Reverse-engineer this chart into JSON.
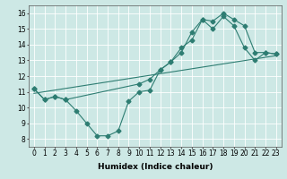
{
  "xlabel": "Humidex (Indice chaleur)",
  "bg_color": "#cde8e5",
  "grid_color": "#ffffff",
  "line_color": "#2e7d72",
  "xlim": [
    -0.5,
    23.5
  ],
  "ylim": [
    7.5,
    16.5
  ],
  "xticks": [
    0,
    1,
    2,
    3,
    4,
    5,
    6,
    7,
    8,
    9,
    10,
    11,
    12,
    13,
    14,
    15,
    16,
    17,
    18,
    19,
    20,
    21,
    22,
    23
  ],
  "yticks": [
    8,
    9,
    10,
    11,
    12,
    13,
    14,
    15,
    16
  ],
  "line1_x": [
    0,
    1,
    2,
    3,
    4,
    5,
    6,
    7,
    8,
    9,
    10,
    11,
    12,
    13,
    14,
    15,
    16,
    17,
    18,
    19,
    20,
    21,
    22,
    23
  ],
  "line1_y": [
    11.2,
    10.5,
    10.7,
    10.5,
    9.8,
    9.0,
    8.2,
    8.2,
    8.5,
    10.4,
    11.0,
    11.1,
    12.4,
    12.9,
    13.8,
    14.3,
    15.6,
    15.0,
    15.8,
    15.2,
    13.8,
    13.0,
    13.5,
    13.4
  ],
  "line2_x": [
    0,
    23
  ],
  "line2_y": [
    10.9,
    13.3
  ],
  "line3_x": [
    0,
    1,
    2,
    3,
    10,
    11,
    12,
    13,
    14,
    15,
    16,
    17,
    18,
    19,
    20,
    21,
    22,
    23
  ],
  "line3_y": [
    11.2,
    10.5,
    10.7,
    10.5,
    11.5,
    11.8,
    12.4,
    12.9,
    13.5,
    14.8,
    15.6,
    15.5,
    16.0,
    15.6,
    15.2,
    13.5,
    13.5,
    13.4
  ],
  "marker": "D",
  "markersize": 2.5,
  "linewidth": 0.8,
  "label_fontsize": 6.5,
  "tick_fontsize": 5.5
}
